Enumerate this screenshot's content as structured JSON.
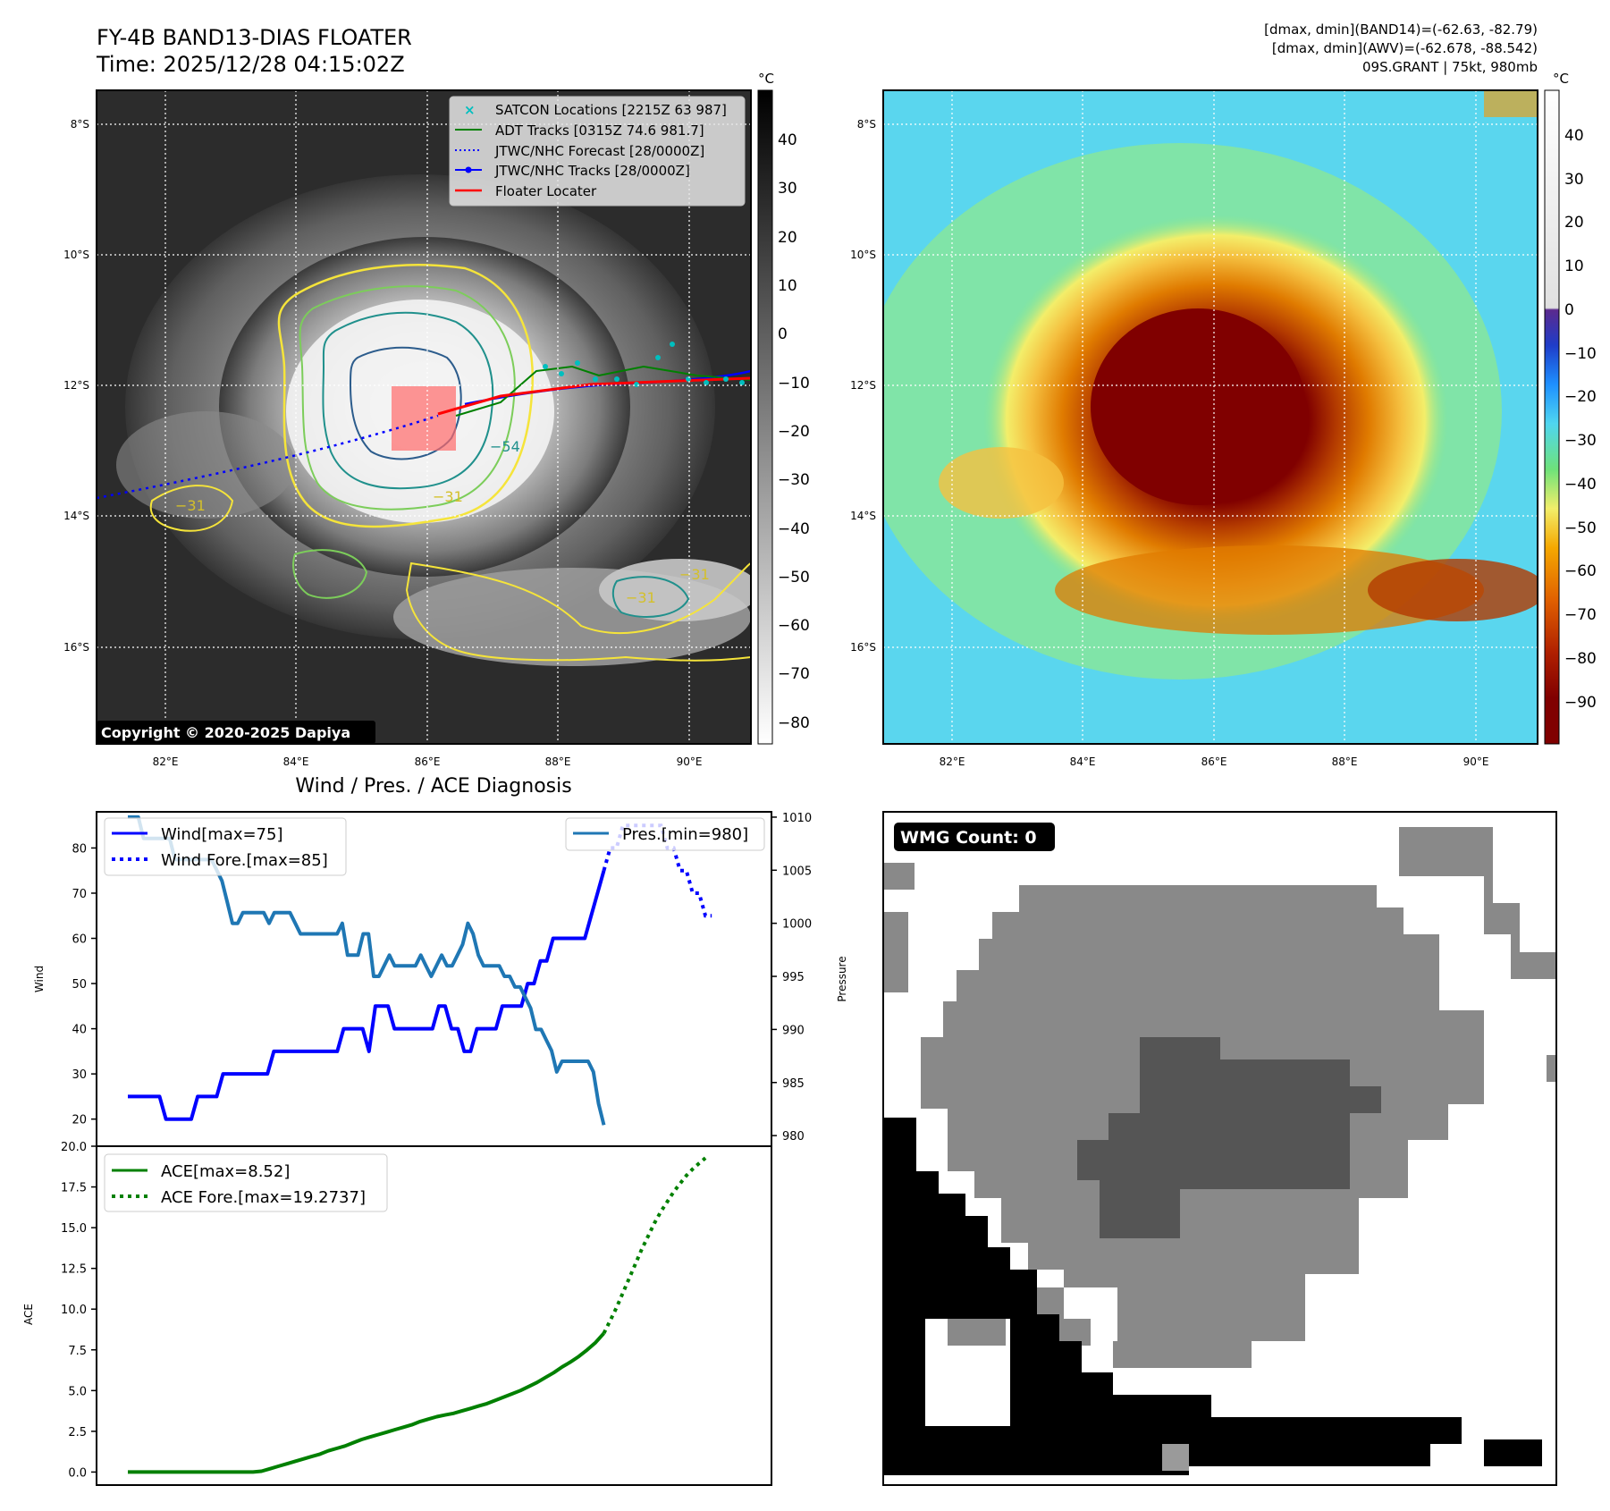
{
  "header": {
    "title_line1": "FY-4B BAND13-DIAS FLOATER",
    "title_line2": "Time: 2025/12/28 04:15:02Z",
    "info_line1": "[dmax, dmin](BAND14)=(-62.63, -82.79)",
    "info_line2": "[dmax, dmin](AWV)=(-62.678, -88.542)",
    "info_line3": "09S.GRANT | 75kt, 980mb"
  },
  "ir_map": {
    "lat_ticks": [
      "8°S",
      "10°S",
      "12°S",
      "14°S",
      "16°S"
    ],
    "lon_ticks": [
      "82°E",
      "84°E",
      "86°E",
      "88°E",
      "90°E"
    ],
    "copyright": "Copyright © 2020-2025 Dapiya",
    "contour_labels": [
      "−31",
      "−31",
      "−31",
      "−31",
      "−54"
    ],
    "legend": [
      {
        "label": "SATCON Locations [2215Z 63 987]",
        "color": "#00bfbf",
        "style": "x"
      },
      {
        "label": "ADT Tracks [0315Z 74.6 981.7]",
        "color": "#008000",
        "style": "line"
      },
      {
        "label": "JTWC/NHC Forecast [28/0000Z]",
        "color": "#0000ff",
        "style": "dotted"
      },
      {
        "label": "JTWC/NHC Tracks [28/0000Z]",
        "color": "#0000ff",
        "style": "line-dot"
      },
      {
        "label": "Floater Locater",
        "color": "#ff0000",
        "style": "line"
      }
    ],
    "colorbar_unit": "°C",
    "colorbar_ticks": [
      "40",
      "30",
      "20",
      "10",
      "0",
      "−10",
      "−20",
      "−30",
      "−40",
      "−50",
      "−60",
      "−70",
      "−80"
    ]
  },
  "color_map": {
    "lat_ticks": [
      "8°S",
      "10°S",
      "12°S",
      "14°S",
      "16°S"
    ],
    "lon_ticks": [
      "82°E",
      "84°E",
      "86°E",
      "88°E",
      "90°E"
    ],
    "colorbar_unit": "°C",
    "colorbar_ticks": [
      "40",
      "30",
      "20",
      "10",
      "0",
      "−10",
      "−20",
      "−30",
      "−40",
      "−50",
      "−60",
      "−70",
      "−80",
      "−90"
    ]
  },
  "wmg": {
    "label": "WMG Count: 0"
  },
  "chart_data": [
    {
      "type": "line",
      "title": "Wind / Pres. / ACE Diagnosis",
      "ylabel": "Wind",
      "y2label": "Pressure",
      "ylim": [
        14,
        88
      ],
      "y2lim": [
        979,
        1010.5
      ],
      "yticks": [
        "20",
        "30",
        "40",
        "50",
        "60",
        "70",
        "80"
      ],
      "y2ticks": [
        "980",
        "985",
        "990",
        "995",
        "1000",
        "1005",
        "1010"
      ],
      "series": [
        {
          "name": "Wind[max=75]",
          "color": "#0000ff",
          "style": "solid",
          "values": [
            25,
            25,
            25,
            25,
            25,
            25,
            20,
            20,
            20,
            20,
            20,
            25,
            25,
            25,
            25,
            30,
            30,
            30,
            30,
            30,
            30,
            30,
            30,
            35,
            35,
            35,
            35,
            35,
            35,
            35,
            35,
            35,
            35,
            35,
            40,
            40,
            40,
            40,
            35,
            45,
            45,
            45,
            40,
            40,
            40,
            40,
            40,
            40,
            40,
            45,
            45,
            40,
            40,
            35,
            35,
            40,
            40,
            40,
            40,
            45,
            45,
            45,
            45,
            50,
            50,
            55,
            55,
            60,
            60,
            60,
            60,
            60,
            60,
            65,
            70,
            75
          ]
        },
        {
          "name": "Wind Fore.[max=85]",
          "color": "#0000ff",
          "style": "dotted",
          "values": [
            75,
            80,
            80,
            85,
            85,
            85,
            85,
            85,
            85,
            85,
            80,
            80,
            75,
            75,
            70,
            70,
            65,
            65
          ]
        },
        {
          "name": "Pres.[min=980]",
          "color": "#1f77b4",
          "style": "solid",
          "axis": "right",
          "values": [
            1010,
            1010,
            1010,
            1008,
            1008,
            1008,
            1008,
            1008,
            1008,
            1006,
            1006,
            1006,
            1006,
            1006,
            1006,
            1006,
            1006,
            1005,
            1004,
            1002,
            1000,
            1000,
            1001,
            1001,
            1001,
            1001,
            1001,
            1000,
            1001,
            1001,
            1001,
            1001,
            1000,
            999,
            999,
            999,
            999,
            999,
            999,
            999,
            999,
            1000,
            997,
            997,
            997,
            999,
            999,
            995,
            995,
            996,
            997,
            996,
            996,
            996,
            996,
            996,
            997,
            996,
            995,
            996,
            997,
            996,
            996,
            997,
            998,
            1000,
            999,
            997,
            996,
            996,
            996,
            996,
            995,
            995,
            994,
            994,
            993,
            992,
            990,
            990,
            989,
            988,
            986,
            987,
            987,
            987,
            987,
            987,
            987,
            986,
            983,
            981
          ]
        }
      ]
    },
    {
      "type": "line",
      "ylabel": "ACE",
      "ylim": [
        -0.8,
        20
      ],
      "yticks": [
        "0.0",
        "2.5",
        "5.0",
        "7.5",
        "10.0",
        "12.5",
        "15.0",
        "17.5",
        "20.0"
      ],
      "series": [
        {
          "name": "ACE[max=8.52]",
          "color": "#008000",
          "style": "solid",
          "values": [
            0,
            0,
            0,
            0,
            0,
            0,
            0,
            0,
            0,
            0,
            0,
            0,
            0,
            0,
            0,
            0,
            0.05,
            0.2,
            0.35,
            0.5,
            0.65,
            0.8,
            0.95,
            1.1,
            1.3,
            1.45,
            1.6,
            1.8,
            2.0,
            2.15,
            2.3,
            2.45,
            2.6,
            2.75,
            2.9,
            3.1,
            3.25,
            3.4,
            3.5,
            3.6,
            3.75,
            3.9,
            4.05,
            4.2,
            4.4,
            4.6,
            4.8,
            5.0,
            5.25,
            5.5,
            5.8,
            6.1,
            6.45,
            6.75,
            7.1,
            7.5,
            7.95,
            8.52
          ]
        },
        {
          "name": "ACE Fore.[max=19.2737]",
          "color": "#008000",
          "style": "dotted",
          "values": [
            8.52,
            9.3,
            10.1,
            11.0,
            11.9,
            12.8,
            13.7,
            14.5,
            15.3,
            16.0,
            16.6,
            17.2,
            17.7,
            18.2,
            18.6,
            18.95,
            19.2737
          ]
        }
      ]
    }
  ]
}
